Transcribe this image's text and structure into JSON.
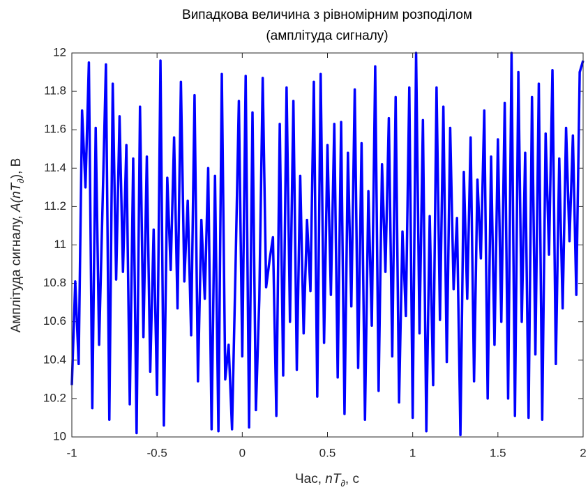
{
  "chart_data": {
    "type": "line",
    "title": [
      "Випадкова величина з рівномірним розподілом",
      "(амплітуда сигналу)"
    ],
    "xlabel": [
      "Час, ",
      "nT",
      "∂",
      ", с"
    ],
    "ylabel": [
      "Амплітуда сигналу, ",
      "A(nT",
      "∂",
      "), В"
    ],
    "xlim": [
      -1,
      2
    ],
    "ylim": [
      10,
      12
    ],
    "xticks": [
      -1,
      -0.5,
      0,
      0.5,
      1,
      1.5,
      2
    ],
    "yticks": [
      10,
      10.2,
      10.4,
      10.6,
      10.8,
      11,
      11.2,
      11.4,
      11.6,
      11.8,
      12
    ],
    "x": [
      -1,
      -0.98,
      -0.96,
      -0.94,
      -0.92,
      -0.9,
      -0.88,
      -0.86,
      -0.84,
      -0.82,
      -0.8,
      -0.78,
      -0.76,
      -0.74,
      -0.72,
      -0.7,
      -0.68,
      -0.66,
      -0.64,
      -0.62,
      -0.6,
      -0.58,
      -0.56,
      -0.54,
      -0.52,
      -0.5,
      -0.48,
      -0.46,
      -0.44,
      -0.42,
      -0.4,
      -0.38,
      -0.36,
      -0.34,
      -0.32,
      -0.3,
      -0.28,
      -0.26,
      -0.24,
      -0.22,
      -0.2,
      -0.18,
      -0.16,
      -0.14,
      -0.12,
      -0.1,
      -0.08,
      -0.06,
      -0.04,
      -0.02,
      0,
      0.02,
      0.04,
      0.06,
      0.08,
      0.1,
      0.12,
      0.14,
      0.16,
      0.18,
      0.2,
      0.22,
      0.24,
      0.26,
      0.28,
      0.3,
      0.32,
      0.34,
      0.36,
      0.38,
      0.4,
      0.42,
      0.44,
      0.46,
      0.48,
      0.5,
      0.52,
      0.54,
      0.56,
      0.58,
      0.6,
      0.62,
      0.64,
      0.66,
      0.68,
      0.7,
      0.72,
      0.74,
      0.76,
      0.78,
      0.8,
      0.82,
      0.84,
      0.86,
      0.88,
      0.9,
      0.92,
      0.94,
      0.96,
      0.98,
      1,
      1.02,
      1.04,
      1.06,
      1.08,
      1.1,
      1.12,
      1.14,
      1.16,
      1.18,
      1.2,
      1.22,
      1.24,
      1.26,
      1.28,
      1.3,
      1.32,
      1.34,
      1.36,
      1.38,
      1.4,
      1.42,
      1.44,
      1.46,
      1.48,
      1.5,
      1.52,
      1.54,
      1.56,
      1.58,
      1.6,
      1.62,
      1.64,
      1.66,
      1.68,
      1.7,
      1.72,
      1.74,
      1.76,
      1.78,
      1.8,
      1.82,
      1.84,
      1.86,
      1.88,
      1.9,
      1.92,
      1.94,
      1.96,
      1.98,
      2
    ],
    "series": [
      {
        "color": "#0000ff",
        "values": [
          10.27,
          10.81,
          10.38,
          11.7,
          11.3,
          11.95,
          10.15,
          11.61,
          10.48,
          11.2,
          11.94,
          10.09,
          11.84,
          10.82,
          11.67,
          10.86,
          11.52,
          10.17,
          11.45,
          10.02,
          11.72,
          10.52,
          11.46,
          10.34,
          11.08,
          10.22,
          11.96,
          10.06,
          11.35,
          10.87,
          11.56,
          10.67,
          11.85,
          10.81,
          11.23,
          10.53,
          11.78,
          10.29,
          11.13,
          10.72,
          11.4,
          10.04,
          11.36,
          10.03,
          11.89,
          10.3,
          10.48,
          10.04,
          10.86,
          11.75,
          10.42,
          11.88,
          10.05,
          11.69,
          10.14,
          10.72,
          11.87,
          10.78,
          10.92,
          11.04,
          10.11,
          11.63,
          10.32,
          11.82,
          10.6,
          11.75,
          10.35,
          11.36,
          10.54,
          11.13,
          10.76,
          11.85,
          10.21,
          11.89,
          10.49,
          11.52,
          10.74,
          11.63,
          10.31,
          11.64,
          10.12,
          11.48,
          10.68,
          11.81,
          10.36,
          11.53,
          10.09,
          11.28,
          10.58,
          11.93,
          10.24,
          11.42,
          10.86,
          11.66,
          10.42,
          11.77,
          10.18,
          11.07,
          10.63,
          11.82,
          10.1,
          12,
          10.54,
          11.65,
          10.03,
          11.15,
          10.27,
          11.82,
          10.61,
          11.72,
          10.39,
          11.61,
          10.77,
          11.14,
          10.01,
          11.38,
          10.72,
          11.56,
          10.29,
          11.34,
          10.93,
          11.7,
          10.2,
          11.46,
          10.48,
          11.55,
          10.6,
          11.74,
          10.2,
          12,
          10.11,
          11.9,
          10.6,
          11.48,
          10.1,
          11.77,
          10.43,
          11.84,
          10.09,
          11.58,
          10.95,
          11.91,
          10.38,
          11.45,
          10.67,
          11.61,
          11.02,
          11.57,
          10.74,
          11.9,
          11.96
        ]
      }
    ]
  }
}
